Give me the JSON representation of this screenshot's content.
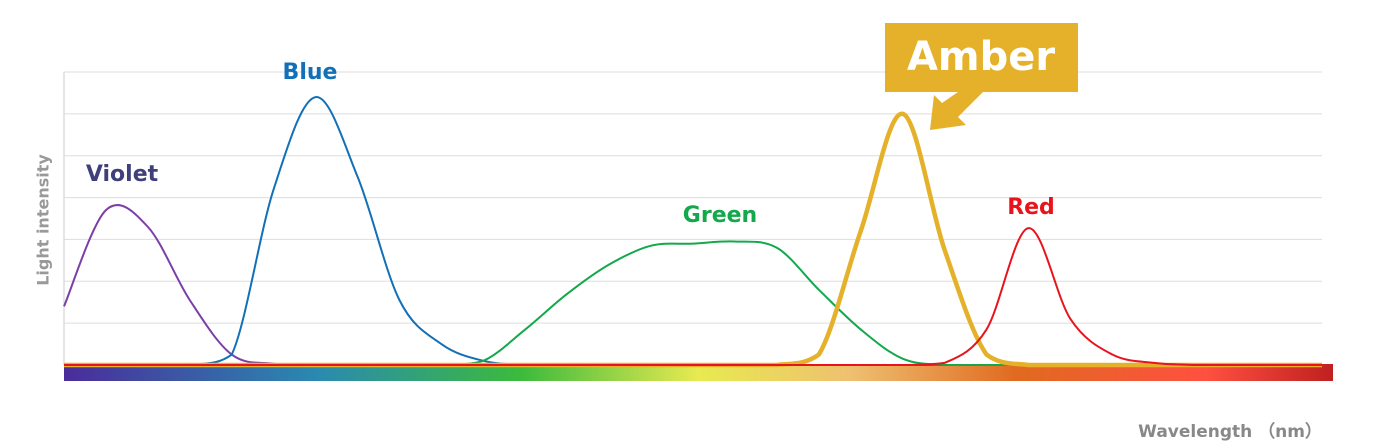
{
  "chart_data": {
    "type": "line",
    "y_label": "Light intensity",
    "x_label": "Wavelength （nm）",
    "xlim": [
      0,
      30
    ],
    "ylim": [
      0,
      7
    ],
    "yticks": [
      1,
      2,
      3,
      4,
      5,
      6,
      7
    ],
    "grid": true,
    "x": [
      0,
      1,
      2,
      3,
      4,
      5,
      6,
      7,
      8,
      9,
      10,
      11,
      12,
      13,
      14,
      15,
      16,
      17,
      18,
      19,
      20,
      21,
      22,
      23,
      24,
      25,
      26,
      27,
      28,
      29,
      30
    ],
    "series": [
      {
        "name": "Violet",
        "color": "#7b3fa8",
        "label_color": "#3f3f7a",
        "values": [
          1.4,
          3.7,
          3.3,
          1.55,
          0.25,
          0.03,
          0,
          0,
          0,
          0,
          0,
          0,
          0,
          0,
          0,
          0,
          0,
          0,
          0,
          0,
          0,
          0,
          0,
          0,
          0,
          0,
          0,
          0,
          0,
          0,
          0
        ]
      },
      {
        "name": "Blue",
        "color": "#1170b8",
        "label_color": "#1170b8",
        "values": [
          0,
          0,
          0,
          0,
          0.25,
          4.2,
          6.4,
          4.5,
          1.55,
          0.5,
          0.1,
          0,
          0,
          0,
          0,
          0,
          0,
          0,
          0,
          0,
          0,
          0,
          0,
          0,
          0,
          0,
          0,
          0,
          0,
          0,
          0
        ]
      },
      {
        "name": "Green",
        "color": "#13a84c",
        "label_color": "#13a84c",
        "values": [
          0,
          0,
          0,
          0,
          0,
          0,
          0,
          0,
          0,
          0,
          0.1,
          0.85,
          1.7,
          2.4,
          2.85,
          2.9,
          2.95,
          2.8,
          1.8,
          0.85,
          0.15,
          0,
          0,
          0,
          0,
          0,
          0,
          0,
          0,
          0,
          0
        ]
      },
      {
        "name": "Amber",
        "color": "#e6b12a",
        "label_color": "#ffffff",
        "values": [
          0,
          0,
          0,
          0,
          0,
          0,
          0,
          0,
          0,
          0,
          0,
          0,
          0,
          0,
          0,
          0,
          0,
          0,
          0.25,
          3.2,
          6.0,
          2.75,
          0.25,
          0,
          0,
          0,
          0,
          0,
          0,
          0,
          0
        ]
      },
      {
        "name": "Red",
        "color": "#e8141c",
        "label_color": "#e8141c",
        "values": [
          0,
          0,
          0,
          0,
          0,
          0,
          0,
          0,
          0,
          0,
          0,
          0,
          0,
          0,
          0,
          0,
          0,
          0,
          0,
          0,
          0,
          0.05,
          0.85,
          3.27,
          1.1,
          0.25,
          0.05,
          0,
          0,
          0,
          0
        ]
      }
    ]
  }
}
